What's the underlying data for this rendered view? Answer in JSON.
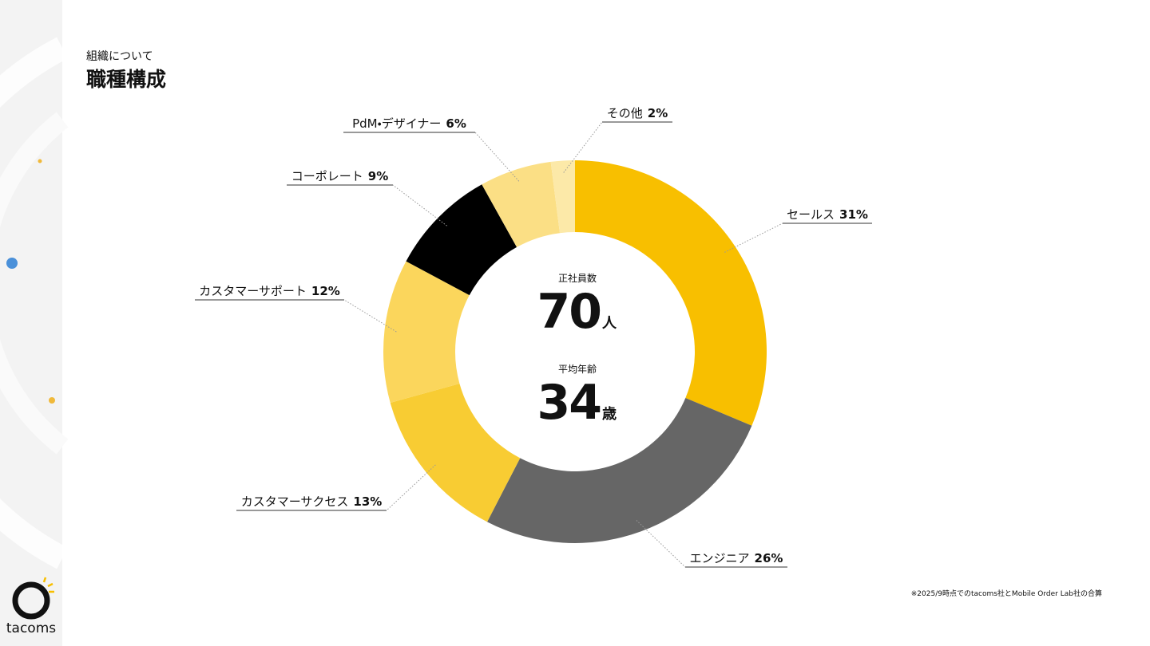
{
  "header": {
    "kicker": "組織について"
  },
  "chart_data": {
    "type": "donut",
    "title": "職種構成",
    "categories": [
      "セールス",
      "エンジニア",
      "カスタマーサクセス",
      "カスタマーサポート",
      "コーポレート",
      "PdM・デザイナー",
      "その他"
    ],
    "values": [
      31,
      26,
      13,
      12,
      9,
      6,
      2
    ],
    "value_labels": [
      "31%",
      "26%",
      "13%",
      "12%",
      "9%",
      "6%",
      "2%"
    ],
    "colors": [
      "#f8bf00",
      "#666666",
      "#f8cc33",
      "#fbd65c",
      "#000000",
      "#fbdf85",
      "#fce9a8"
    ],
    "center_stats": [
      {
        "label": "正社員数",
        "value": 70,
        "unit": "人"
      },
      {
        "label": "平均年齢",
        "value": 34,
        "unit": "歳"
      }
    ]
  },
  "footnote": "※2025/9時点でのtacoms社とMobile Order Lab社の合算",
  "brand": "tacoms"
}
